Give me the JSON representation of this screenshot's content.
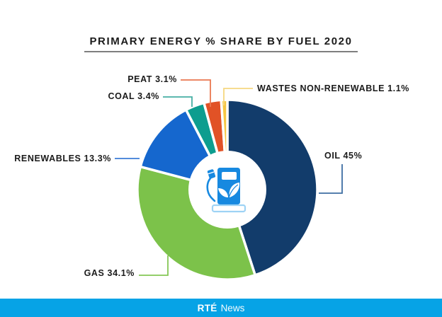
{
  "title": "PRIMARY ENERGY % SHARE BY FUEL 2020",
  "chart_data": {
    "type": "pie",
    "subtype": "donut",
    "title": "PRIMARY ENERGY % SHARE BY FUEL 2020",
    "unit": "%",
    "start_angle_deg": 0,
    "direction": "clockwise",
    "segments": [
      {
        "name": "OIL",
        "value": 45,
        "label": "OIL 45%",
        "color": "#123c6b",
        "line_color": "#3e6ea3"
      },
      {
        "name": "GAS",
        "value": 34.1,
        "label": "GAS 34.1%",
        "color": "#7cc24a",
        "line_color": "#85c756"
      },
      {
        "name": "RENEWABLES",
        "value": 13.3,
        "label": "RENEWABLES 13.3%",
        "color": "#1567ce",
        "line_color": "#3c7bd6"
      },
      {
        "name": "COAL",
        "value": 3.4,
        "label": "COAL 3.4%",
        "color": "#0d9d8f",
        "line_color": "#45afa4"
      },
      {
        "name": "PEAT",
        "value": 3.1,
        "label": "PEAT 3.1%",
        "color": "#e15226",
        "line_color": "#ea7850"
      },
      {
        "name": "WASTES NON-RENEWABLE",
        "value": 1.1,
        "label": "WASTES NON-RENEWABLE 1.1%",
        "color": "#f6c744",
        "line_color": "#f6d780"
      }
    ],
    "center_icon": "eco-fuel-pump",
    "icon_color": "#1789e0",
    "icon_accent_color": "#9ed3f5"
  },
  "footer": {
    "brand_bold": "RTÉ",
    "brand_regular": "News",
    "bar_color": "#06a3e6"
  }
}
